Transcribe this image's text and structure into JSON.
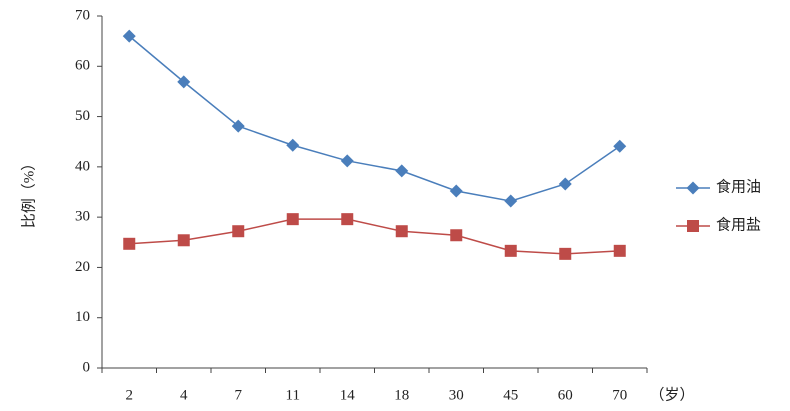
{
  "chart_data": {
    "type": "line",
    "y_label": "比例（%）",
    "x_label": "（岁）",
    "categories": [
      "2",
      "4",
      "7",
      "11",
      "14",
      "18",
      "30",
      "45",
      "60",
      "70"
    ],
    "series": [
      {
        "name": "食用油",
        "color": "#4a7ebb",
        "marker": "diamond",
        "values": [
          66.0,
          56.9,
          48.1,
          44.3,
          41.2,
          39.2,
          35.2,
          33.2,
          36.6,
          44.1
        ]
      },
      {
        "name": "食用盐",
        "color": "#be4b48",
        "marker": "square",
        "values": [
          24.7,
          25.4,
          27.2,
          29.6,
          29.6,
          27.2,
          26.4,
          23.3,
          22.7,
          23.3
        ]
      }
    ],
    "ylim": [
      0,
      70
    ],
    "yticks": [
      0,
      10,
      20,
      30,
      40,
      50,
      60,
      70
    ],
    "grid": false,
    "legend": "right"
  }
}
